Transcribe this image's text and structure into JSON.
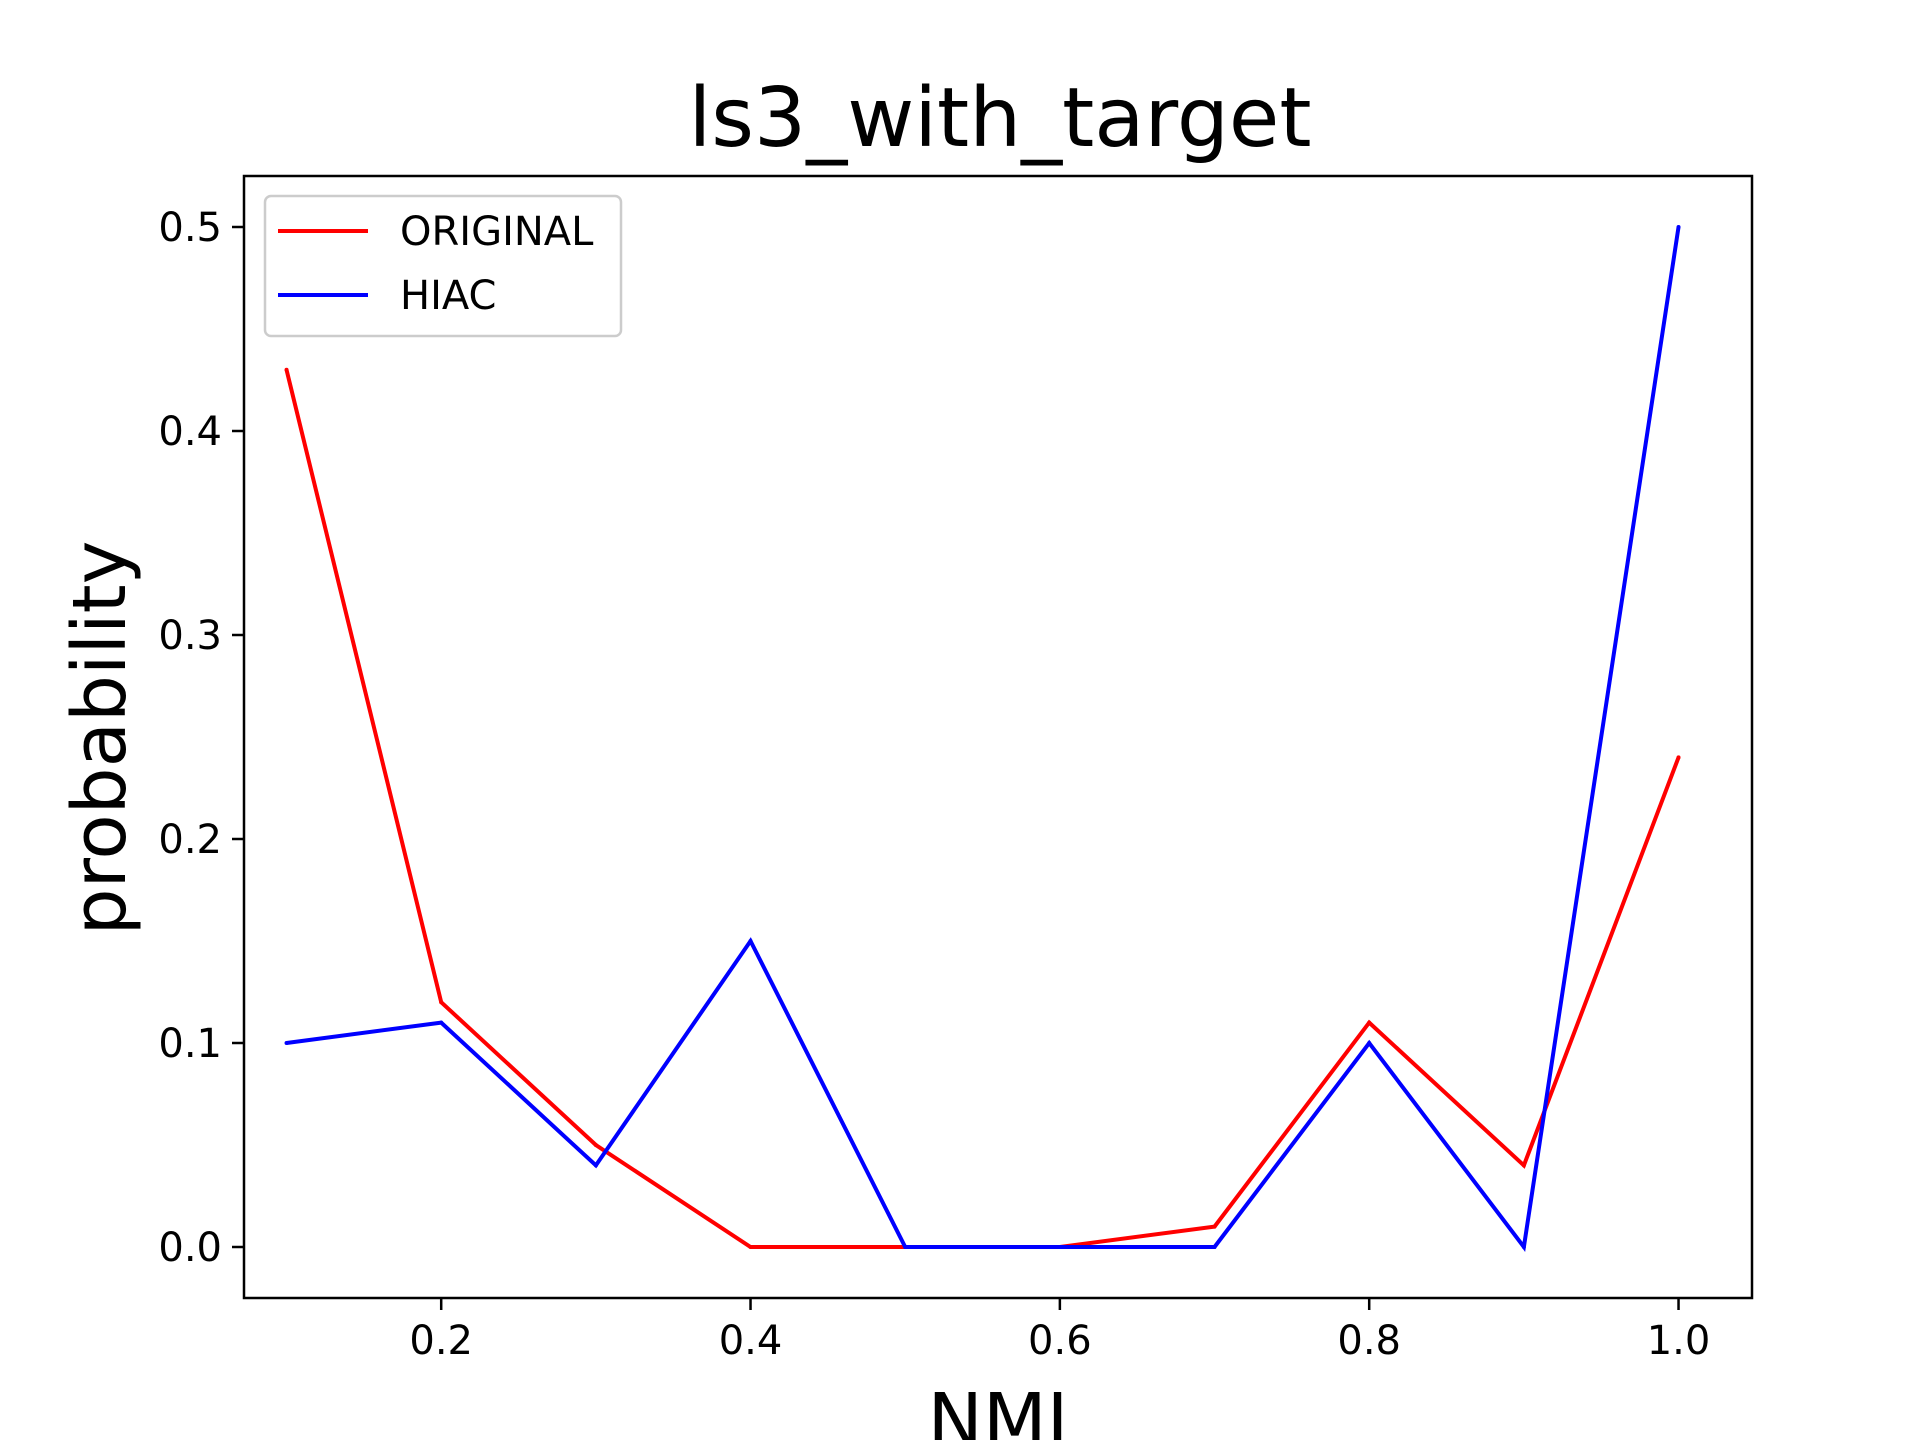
{
  "chart_data": {
    "type": "line",
    "title": "ls3_with_target",
    "xlabel": "NMI",
    "ylabel": "probability",
    "x": [
      0.1,
      0.2,
      0.3,
      0.4,
      0.5,
      0.6,
      0.7,
      0.8,
      0.9,
      1.0
    ],
    "series": [
      {
        "name": "ORIGINAL",
        "color": "#ff0000",
        "values": [
          0.43,
          0.12,
          0.05,
          0.0,
          0.0,
          0.0,
          0.01,
          0.11,
          0.04,
          0.24
        ]
      },
      {
        "name": "HIAC",
        "color": "#0000ff",
        "values": [
          0.1,
          0.11,
          0.04,
          0.15,
          0.0,
          0.0,
          0.0,
          0.1,
          0.0,
          0.5
        ]
      }
    ],
    "xlim": [
      0.0725,
      1.0475
    ],
    "ylim": [
      -0.025,
      0.525
    ],
    "xticks": [
      0.2,
      0.4,
      0.6,
      0.8,
      1.0
    ],
    "xtick_labels": [
      "0.2",
      "0.4",
      "0.6",
      "0.8",
      "1.0"
    ],
    "yticks": [
      0.0,
      0.1,
      0.2,
      0.3,
      0.4,
      0.5
    ],
    "ytick_labels": [
      "0.0",
      "0.1",
      "0.2",
      "0.3",
      "0.4",
      "0.5"
    ],
    "grid": false,
    "legend_position": "upper left"
  }
}
